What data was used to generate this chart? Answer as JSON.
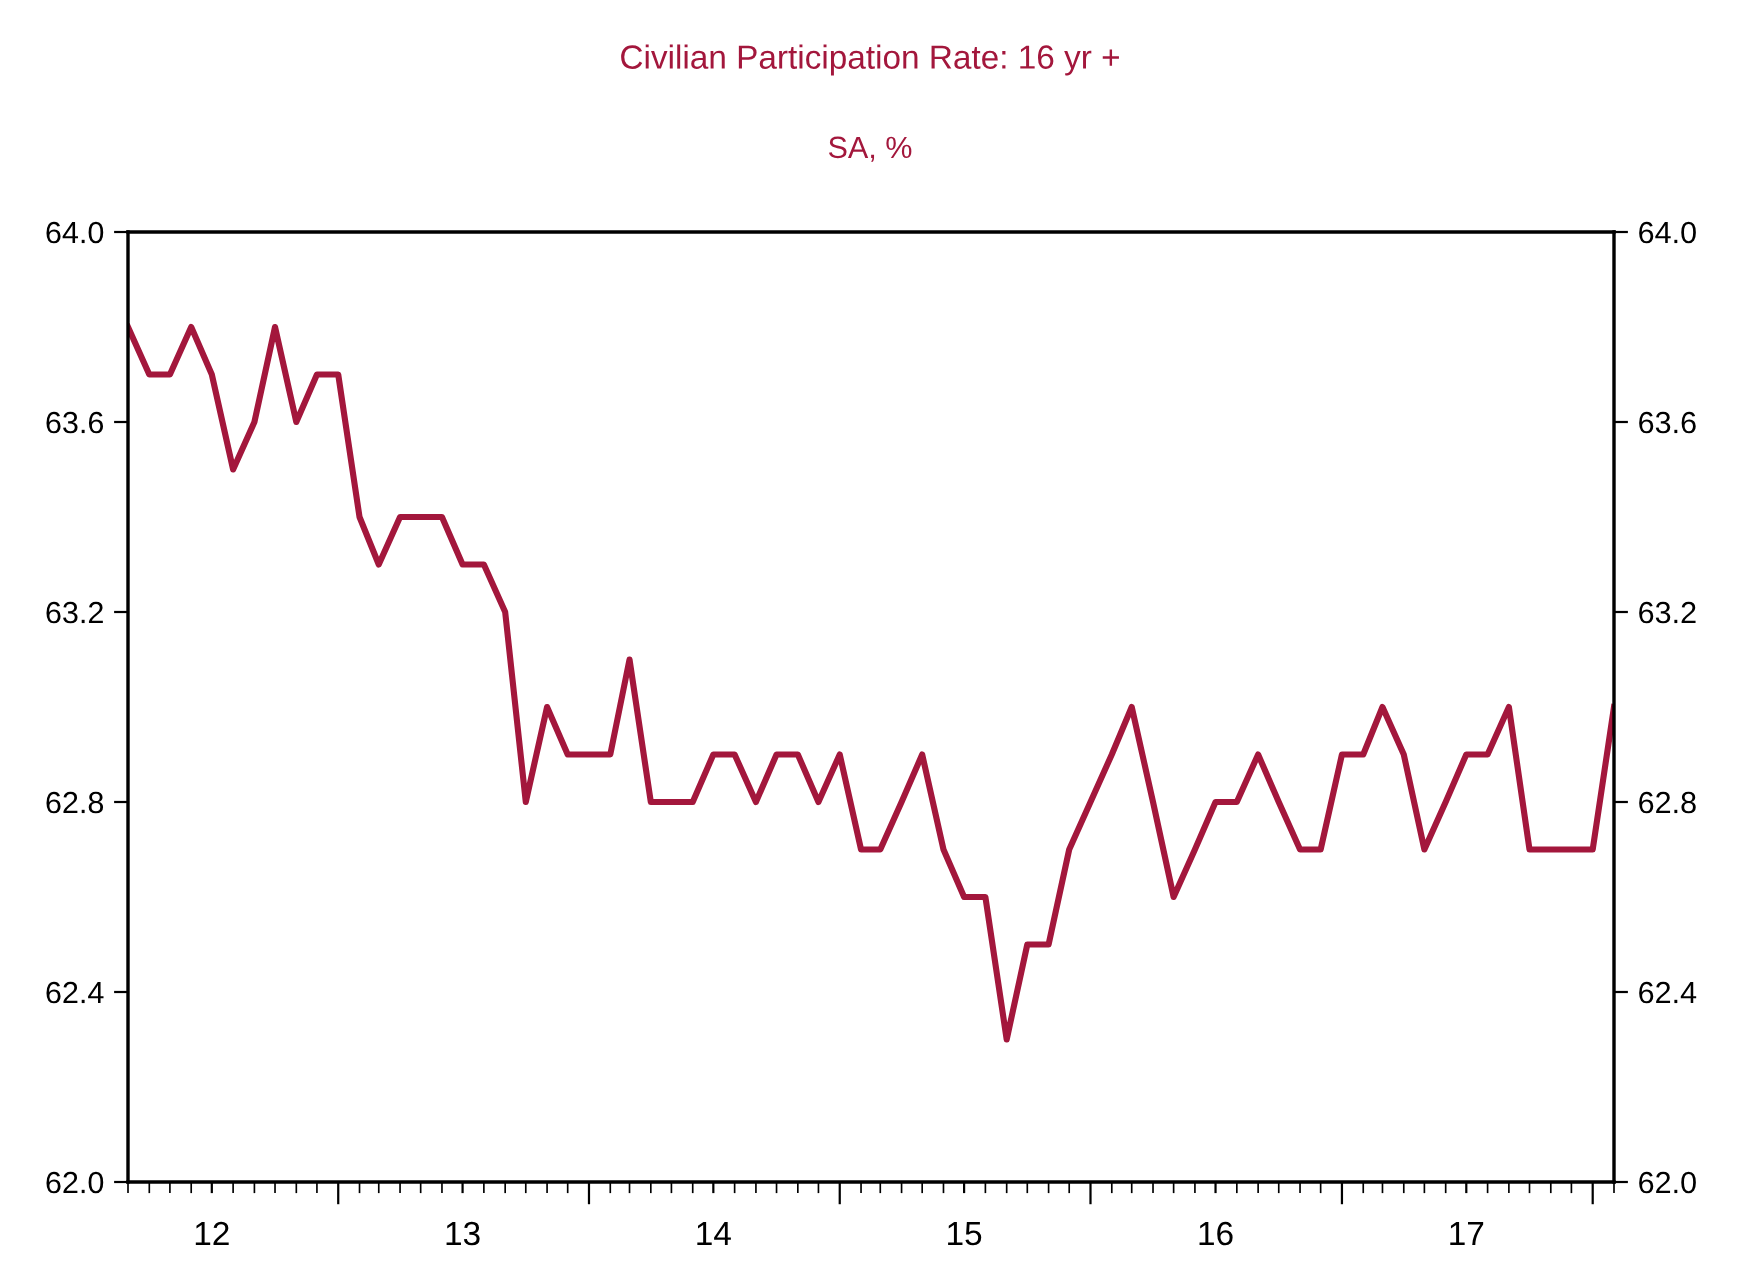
{
  "chart_data": {
    "type": "line",
    "title": "Civilian Participation Rate: 16 yr +",
    "subtitle": "SA, %",
    "x": [
      "2012-03",
      "2012-04",
      "2012-05",
      "2012-06",
      "2012-07",
      "2012-08",
      "2012-09",
      "2012-10",
      "2012-11",
      "2012-12",
      "2013-01",
      "2013-02",
      "2013-03",
      "2013-04",
      "2013-05",
      "2013-06",
      "2013-07",
      "2013-08",
      "2013-09",
      "2013-10",
      "2013-11",
      "2013-12",
      "2014-01",
      "2014-02",
      "2014-03",
      "2014-04",
      "2014-05",
      "2014-06",
      "2014-07",
      "2014-08",
      "2014-09",
      "2014-10",
      "2014-11",
      "2014-12",
      "2015-01",
      "2015-02",
      "2015-03",
      "2015-04",
      "2015-05",
      "2015-06",
      "2015-07",
      "2015-08",
      "2015-09",
      "2015-10",
      "2015-11",
      "2015-12",
      "2016-01",
      "2016-02",
      "2016-03",
      "2016-04",
      "2016-05",
      "2016-06",
      "2016-07",
      "2016-08",
      "2016-09",
      "2016-10",
      "2016-11",
      "2016-12",
      "2017-01",
      "2017-02",
      "2017-03",
      "2017-04",
      "2017-05",
      "2017-06",
      "2017-07",
      "2017-08",
      "2017-09",
      "2017-10",
      "2017-11",
      "2017-12",
      "2018-01",
      "2018-02"
    ],
    "series": [
      {
        "color": "#a3173c",
        "values": [
          63.8,
          63.7,
          63.7,
          63.8,
          63.7,
          63.5,
          63.6,
          63.8,
          63.6,
          63.7,
          63.7,
          63.4,
          63.3,
          63.4,
          63.4,
          63.4,
          63.3,
          63.3,
          63.2,
          62.8,
          63.0,
          62.9,
          62.9,
          62.9,
          63.1,
          62.8,
          62.8,
          62.8,
          62.9,
          62.9,
          62.8,
          62.9,
          62.9,
          62.8,
          62.9,
          62.7,
          62.7,
          62.8,
          62.9,
          62.7,
          62.6,
          62.6,
          62.3,
          62.5,
          62.5,
          62.7,
          62.8,
          62.9,
          63.0,
          62.8,
          62.6,
          62.7,
          62.8,
          62.8,
          62.9,
          62.8,
          62.7,
          62.7,
          62.9,
          62.9,
          63.0,
          62.9,
          62.7,
          62.8,
          62.9,
          62.9,
          63.0,
          62.7,
          62.7,
          62.7,
          62.7,
          63.0
        ]
      }
    ],
    "xlim": [
      "2012-03-01",
      "2018-02-01"
    ],
    "xticks": [
      {
        "value": "2013-01-01",
        "label": null
      },
      {
        "value": "2014-01-01",
        "label": null
      },
      {
        "value": "2015-01-01",
        "label": null
      },
      {
        "value": "2016-01-01",
        "label": null
      },
      {
        "value": "2017-01-01",
        "label": null
      },
      {
        "value": "2018-01-01",
        "label": null
      },
      {
        "value": "2012-07-01",
        "label": "12"
      },
      {
        "value": "2013-07-01",
        "label": "13"
      },
      {
        "value": "2014-07-01",
        "label": "14"
      },
      {
        "value": "2015-07-01",
        "label": "15"
      },
      {
        "value": "2016-07-01",
        "label": "16"
      },
      {
        "value": "2017-07-01",
        "label": "17"
      }
    ],
    "ylim": [
      62.0,
      64.0
    ],
    "yticks": [
      {
        "value": 62.0,
        "label": "62.0"
      },
      {
        "value": 62.4,
        "label": "62.4"
      },
      {
        "value": 62.8,
        "label": "62.8"
      },
      {
        "value": 63.2,
        "label": "63.2"
      },
      {
        "value": 63.6,
        "label": "63.6"
      },
      {
        "value": 64.0,
        "label": "64.0"
      }
    ],
    "y2lim": [
      62.0,
      64.0
    ],
    "y2ticks": [
      {
        "value": 62.0,
        "label": "62.0"
      },
      {
        "value": 62.4,
        "label": "62.4"
      },
      {
        "value": 62.8,
        "label": "62.8"
      },
      {
        "value": 63.2,
        "label": "63.2"
      },
      {
        "value": 63.6,
        "label": "63.6"
      },
      {
        "value": 64.0,
        "label": "64.0"
      }
    ],
    "grid": false,
    "legend": false,
    "marker": "none",
    "line_style": "solid"
  }
}
